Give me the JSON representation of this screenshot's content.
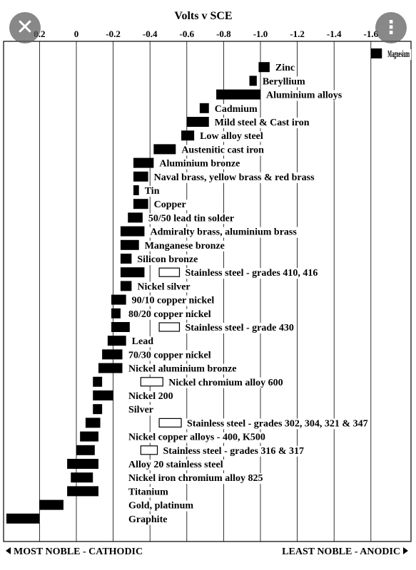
{
  "overlay": {
    "close_glyph": "✕",
    "more_glyph": "⋮"
  },
  "chart_data": {
    "type": "bar",
    "orientation": "horizontal-range",
    "title": "Volts v SCE",
    "xlim": [
      0.3,
      -1.7
    ],
    "x_ticks": [
      "0.2",
      "0",
      "-0.2",
      "-0.4",
      "-0.6",
      "-0.8",
      "-1.0",
      "-1.2",
      "-1.4",
      "-1.6"
    ],
    "x_tick_values": [
      0.2,
      0,
      -0.2,
      -0.4,
      -0.6,
      -0.8,
      -1.0,
      -1.2,
      -1.4,
      -1.6
    ],
    "grid": true,
    "footer_left": "MOST NOBLE - CATHODIC",
    "footer_right": "LEAST NOBLE - ANODIC",
    "series_fill_note": "solid bars = active potential range; hollow bars = passive stainless steel range",
    "items": [
      {
        "label": "Magnesium",
        "ranges": [
          [
            -1.6,
            -1.66
          ]
        ]
      },
      {
        "label": "Zinc",
        "ranges": [
          [
            -0.99,
            -1.05
          ]
        ]
      },
      {
        "label": "Beryllium",
        "ranges": [
          [
            -0.94,
            -0.98
          ]
        ]
      },
      {
        "label": "Aluminium alloys",
        "ranges": [
          [
            -0.76,
            -1.0
          ]
        ]
      },
      {
        "label": "Cadmium",
        "ranges": [
          [
            -0.67,
            -0.72
          ]
        ]
      },
      {
        "label": "Mild steel & Cast iron",
        "ranges": [
          [
            -0.6,
            -0.72
          ]
        ]
      },
      {
        "label": "Low alloy steel",
        "ranges": [
          [
            -0.57,
            -0.64
          ]
        ]
      },
      {
        "label": "Austenitic cast iron",
        "ranges": [
          [
            -0.42,
            -0.54
          ]
        ]
      },
      {
        "label": "Aluminium bronze",
        "ranges": [
          [
            -0.31,
            -0.42
          ]
        ]
      },
      {
        "label": "Naval brass, yellow brass & red brass",
        "ranges": [
          [
            -0.31,
            -0.39
          ]
        ]
      },
      {
        "label": "Tin",
        "ranges": [
          [
            -0.31,
            -0.34
          ]
        ]
      },
      {
        "label": "Copper",
        "ranges": [
          [
            -0.31,
            -0.39
          ]
        ]
      },
      {
        "label": "50/50 lead tin solder",
        "ranges": [
          [
            -0.28,
            -0.36
          ]
        ]
      },
      {
        "label": "Admiralty brass, aluminium brass",
        "ranges": [
          [
            -0.24,
            -0.37
          ]
        ]
      },
      {
        "label": "Manganese bronze",
        "ranges": [
          [
            -0.24,
            -0.34
          ]
        ]
      },
      {
        "label": "Silicon bronze",
        "ranges": [
          [
            -0.24,
            -0.3
          ]
        ]
      },
      {
        "label": "Stainless steel - grades 410, 416",
        "ranges": [
          [
            -0.24,
            -0.37
          ]
        ],
        "passive": [
          [
            -0.45,
            -0.56
          ]
        ]
      },
      {
        "label": "Nickel silver",
        "ranges": [
          [
            -0.24,
            -0.3
          ]
        ]
      },
      {
        "label": "90/10 copper nickel",
        "ranges": [
          [
            -0.19,
            -0.27
          ]
        ]
      },
      {
        "label": "80/20 copper nickel",
        "ranges": [
          [
            -0.19,
            -0.24
          ]
        ]
      },
      {
        "label": "Stainless steel - grade 430",
        "ranges": [
          [
            -0.19,
            -0.29
          ]
        ],
        "passive": [
          [
            -0.45,
            -0.56
          ]
        ]
      },
      {
        "label": "Lead",
        "ranges": [
          [
            -0.17,
            -0.27
          ]
        ]
      },
      {
        "label": "70/30 copper nickel",
        "ranges": [
          [
            -0.14,
            -0.25
          ]
        ]
      },
      {
        "label": "Nickel aluminium bronze",
        "ranges": [
          [
            -0.12,
            -0.25
          ]
        ]
      },
      {
        "label": "Nickel chromium alloy 600",
        "ranges": [
          [
            -0.09,
            -0.14
          ]
        ],
        "passive": [
          [
            -0.35,
            -0.47
          ]
        ]
      },
      {
        "label": "Nickel 200",
        "ranges": [
          [
            -0.09,
            -0.2
          ]
        ]
      },
      {
        "label": "Silver",
        "ranges": [
          [
            -0.09,
            -0.14
          ]
        ]
      },
      {
        "label": "Stainless steel - grades 302, 304, 321 & 347",
        "ranges": [
          [
            -0.05,
            -0.13
          ]
        ],
        "passive": [
          [
            -0.45,
            -0.57
          ]
        ]
      },
      {
        "label": "Nickel copper alloys - 400, K500",
        "ranges": [
          [
            -0.02,
            -0.12
          ]
        ]
      },
      {
        "label": "Stainless steel - grades 316 & 317",
        "ranges": [
          [
            0.0,
            -0.1
          ]
        ],
        "passive": [
          [
            -0.35,
            -0.44
          ]
        ]
      },
      {
        "label": "Alloy 20 stainless steel",
        "ranges": [
          [
            0.05,
            -0.12
          ]
        ]
      },
      {
        "label": "Nickel iron chromium alloy 825",
        "ranges": [
          [
            0.03,
            -0.09
          ]
        ]
      },
      {
        "label": "Titanium",
        "ranges": [
          [
            0.05,
            -0.12
          ]
        ]
      },
      {
        "label": "Gold, platinum",
        "ranges": [
          [
            0.2,
            0.07
          ]
        ]
      },
      {
        "label": "Graphite",
        "ranges": [
          [
            0.38,
            0.2
          ]
        ]
      }
    ]
  }
}
